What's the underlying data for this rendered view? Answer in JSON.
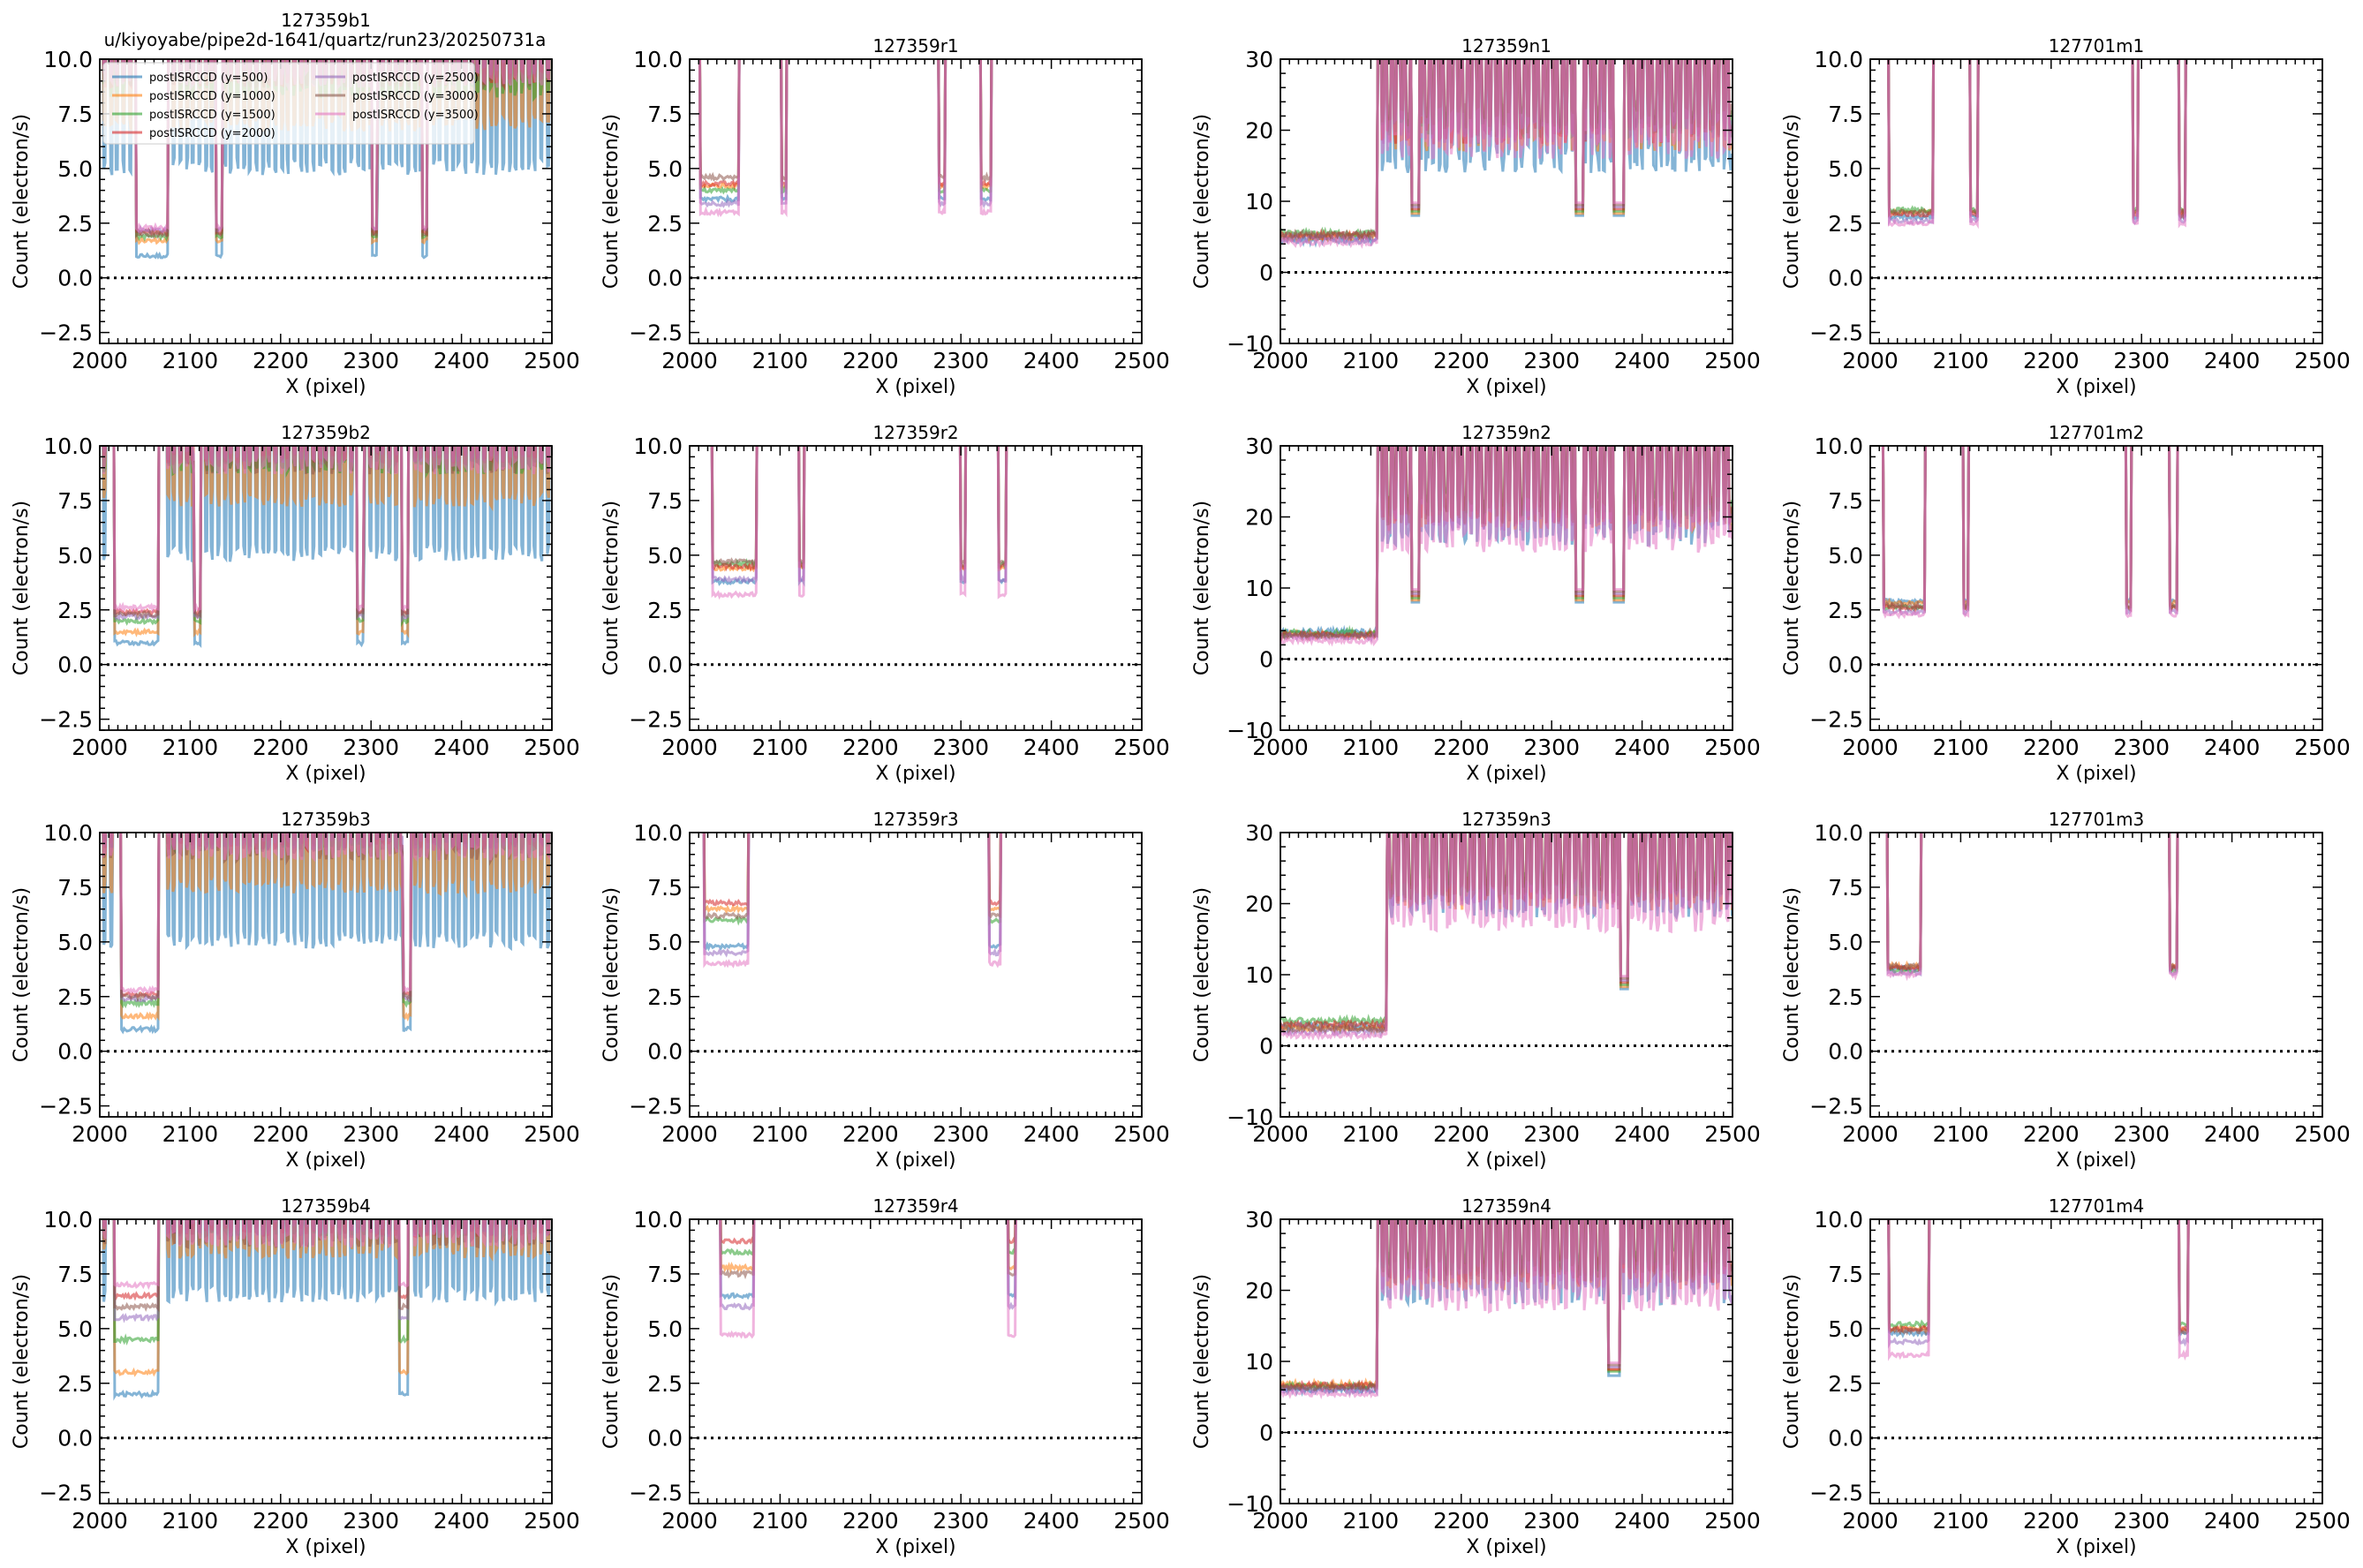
{
  "figure": {
    "suptitle": "u/kiyoyabe/pipe2d-1641/quartz/run23/20250731a",
    "xlabel": "X (pixel)",
    "ylabel": "Count (electron/s)"
  },
  "colors": {
    "postISRCCD (y=500)": "#1f77b4",
    "postISRCCD (y=1000)": "#ff7f0e",
    "postISRCCD (y=1500)": "#2ca02c",
    "postISRCCD (y=2000)": "#d62728",
    "postISRCCD (y=2500)": "#9467bd",
    "postISRCCD (y=3000)": "#8c564b",
    "postISRCCD (y=3500)": "#e377c2"
  },
  "legend": {
    "placement": "upper-left",
    "entries": [
      "postISRCCD (y=500)",
      "postISRCCD (y=1000)",
      "postISRCCD (y=1500)",
      "postISRCCD (y=2000)",
      "postISRCCD (y=2500)",
      "postISRCCD (y=3000)",
      "postISRCCD (y=3500)"
    ]
  },
  "chart_data": [
    {
      "title": "127359b1",
      "type": "line",
      "arm": "b",
      "xlim": [
        2000,
        2500
      ],
      "ylim": [
        -3,
        10
      ],
      "xticks": [
        "2000",
        "2100",
        "2200",
        "2300",
        "2400",
        "2500"
      ],
      "yticks": [
        "−2.5",
        "0.0",
        "2.5",
        "5.0",
        "7.5",
        "10.0"
      ],
      "hline": 0,
      "dips": [
        [
          2035,
          2080
        ],
        [
          2128,
          2136
        ],
        [
          2300,
          2307
        ],
        [
          2355,
          2363
        ]
      ],
      "flat_level": [
        1.0,
        1.7,
        1.9,
        2.1,
        2.2,
        2.0,
        2.3
      ],
      "high_level": [
        5.5,
        7.5,
        9,
        9.5,
        10,
        9.5,
        9.5
      ]
    },
    {
      "title": "127359r1",
      "type": "line",
      "arm": "r",
      "xlim": [
        2000,
        2500
      ],
      "ylim": [
        -3,
        10
      ],
      "xticks": [
        "2000",
        "2100",
        "2200",
        "2300",
        "2400",
        "2500"
      ],
      "yticks": [
        "−2.5",
        "0.0",
        "2.5",
        "5.0",
        "7.5",
        "10.0"
      ],
      "hline": 0,
      "dips": [
        [
          2007,
          2060
        ],
        [
          2100,
          2108
        ],
        [
          2275,
          2283
        ],
        [
          2320,
          2335
        ]
      ],
      "flat_level": [
        3.6,
        4.2,
        4.0,
        4.3,
        3.4,
        4.6,
        3.0
      ]
    },
    {
      "title": "127359n1",
      "type": "line",
      "arm": "n",
      "xlim": [
        2000,
        2500
      ],
      "ylim": [
        -10,
        30
      ],
      "xticks": [
        "2000",
        "2100",
        "2200",
        "2300",
        "2400",
        "2500"
      ],
      "yticks": [
        "−10",
        "0",
        "10",
        "20",
        "30"
      ],
      "hline": 0,
      "dips": [
        [
          2143,
          2155
        ],
        [
          2325,
          2337
        ],
        [
          2367,
          2382
        ]
      ],
      "flat_level": [
        4.5,
        5.0,
        5.5,
        5.2,
        4.8,
        5.3,
        4.2
      ],
      "high_level": [
        18,
        21,
        23,
        22,
        22,
        24,
        20
      ]
    },
    {
      "title": "127701m1",
      "type": "line",
      "arm": "m",
      "xlim": [
        2000,
        2500
      ],
      "ylim": [
        -3,
        10
      ],
      "xticks": [
        "2000",
        "2100",
        "2200",
        "2300",
        "2400",
        "2500"
      ],
      "yticks": [
        "−2.5",
        "0.0",
        "2.5",
        "5.0",
        "7.5",
        "10.0"
      ],
      "hline": 0,
      "dips": [
        [
          2015,
          2075
        ],
        [
          2110,
          2120
        ],
        [
          2290,
          2297
        ],
        [
          2340,
          2350
        ]
      ],
      "flat_level": [
        2.8,
        3.0,
        3.1,
        2.9,
        2.6,
        3.0,
        2.5
      ]
    },
    {
      "title": "127359b2",
      "type": "line",
      "arm": "b",
      "xlim": [
        2000,
        2500
      ],
      "ylim": [
        -3,
        10
      ],
      "xticks": [
        "2000",
        "2100",
        "2200",
        "2300",
        "2400",
        "2500"
      ],
      "yticks": [
        "−2.5",
        "0.0",
        "2.5",
        "5.0",
        "7.5",
        "10.0"
      ],
      "hline": 0,
      "dips": [
        [
          2010,
          2070
        ],
        [
          2104,
          2112
        ],
        [
          2284,
          2292
        ],
        [
          2333,
          2342
        ]
      ],
      "flat_level": [
        1.0,
        1.5,
        2.0,
        2.4,
        2.2,
        2.3,
        2.6
      ],
      "high_level": [
        5.5,
        8,
        9.5,
        10,
        10,
        9.5,
        9.5
      ]
    },
    {
      "title": "127359r2",
      "type": "line",
      "arm": "r",
      "xlim": [
        2000,
        2500
      ],
      "ylim": [
        -3,
        10
      ],
      "xticks": [
        "2000",
        "2100",
        "2200",
        "2300",
        "2400",
        "2500"
      ],
      "yticks": [
        "−2.5",
        "0.0",
        "2.5",
        "5.0",
        "7.5",
        "10.0"
      ],
      "hline": 0,
      "dips": [
        [
          2020,
          2080
        ],
        [
          2120,
          2128
        ],
        [
          2298,
          2306
        ],
        [
          2340,
          2352
        ]
      ],
      "flat_level": [
        3.8,
        4.4,
        4.6,
        4.5,
        3.9,
        4.7,
        3.2
      ]
    },
    {
      "title": "127359n2",
      "type": "line",
      "arm": "n",
      "xlim": [
        2000,
        2500
      ],
      "ylim": [
        -10,
        30
      ],
      "xticks": [
        "2000",
        "2100",
        "2200",
        "2300",
        "2400",
        "2500"
      ],
      "yticks": [
        "−10",
        "0",
        "10",
        "20",
        "30"
      ],
      "hline": 0,
      "dips": [
        [
          2143,
          2155
        ],
        [
          2325,
          2337
        ],
        [
          2367,
          2382
        ]
      ],
      "flat_level": [
        3.8,
        3.5,
        3.7,
        3.4,
        3.2,
        3.3,
        2.6
      ],
      "high_level": [
        20,
        22,
        24,
        23,
        22,
        23,
        19
      ]
    },
    {
      "title": "127701m2",
      "type": "line",
      "arm": "m",
      "xlim": [
        2000,
        2500
      ],
      "ylim": [
        -3,
        10
      ],
      "xticks": [
        "2000",
        "2100",
        "2200",
        "2300",
        "2400",
        "2500"
      ],
      "yticks": [
        "−2.5",
        "0.0",
        "2.5",
        "5.0",
        "7.5",
        "10.0"
      ],
      "hline": 0,
      "dips": [
        [
          2010,
          2065
        ],
        [
          2102,
          2110
        ],
        [
          2282,
          2290
        ],
        [
          2330,
          2340
        ]
      ],
      "flat_level": [
        2.9,
        2.8,
        2.6,
        2.6,
        2.4,
        2.7,
        2.3
      ]
    },
    {
      "title": "127359b3",
      "type": "line",
      "arm": "b",
      "xlim": [
        2000,
        2500
      ],
      "ylim": [
        -3,
        10
      ],
      "xticks": [
        "2000",
        "2100",
        "2200",
        "2300",
        "2400",
        "2500"
      ],
      "yticks": [
        "−2.5",
        "0.0",
        "2.5",
        "5.0",
        "7.5",
        "10.0"
      ],
      "hline": 0,
      "dips": [
        [
          2018,
          2070
        ],
        [
          2335,
          2345
        ]
      ],
      "flat_level": [
        1.0,
        1.6,
        2.2,
        2.6,
        2.4,
        2.5,
        2.8
      ],
      "high_level": [
        5.5,
        8,
        10,
        10,
        10,
        9.5,
        9.5
      ]
    },
    {
      "title": "127359r3",
      "type": "line",
      "arm": "r",
      "xlim": [
        2000,
        2500
      ],
      "ylim": [
        -3,
        10
      ],
      "xticks": [
        "2000",
        "2100",
        "2200",
        "2300",
        "2400",
        "2500"
      ],
      "yticks": [
        "−2.5",
        "0.0",
        "2.5",
        "5.0",
        "7.5",
        "10.0"
      ],
      "hline": 0,
      "dips": [
        [
          2010,
          2070
        ],
        [
          2330,
          2345
        ]
      ],
      "flat_level": [
        4.8,
        6.5,
        6.0,
        6.8,
        4.5,
        6.2,
        4.0
      ]
    },
    {
      "title": "127359n3",
      "type": "line",
      "arm": "n",
      "xlim": [
        2000,
        2500
      ],
      "ylim": [
        -10,
        30
      ],
      "xticks": [
        "2000",
        "2100",
        "2200",
        "2300",
        "2400",
        "2500"
      ],
      "yticks": [
        "−10",
        "0",
        "10",
        "20",
        "30"
      ],
      "hline": 0,
      "dips": [
        [
          2375,
          2385
        ]
      ],
      "flat_level": [
        2.8,
        2.5,
        3.5,
        3.0,
        2.0,
        2.4,
        1.5
      ],
      "high_level": [
        22,
        23,
        25,
        24,
        23,
        24,
        20
      ]
    },
    {
      "title": "127701m3",
      "type": "line",
      "arm": "m",
      "xlim": [
        2000,
        2500
      ],
      "ylim": [
        -3,
        10
      ],
      "xticks": [
        "2000",
        "2100",
        "2200",
        "2300",
        "2400",
        "2500"
      ],
      "yticks": [
        "−2.5",
        "0.0",
        "2.5",
        "5.0",
        "7.5",
        "10.0"
      ],
      "hline": 0,
      "dips": [
        [
          2015,
          2060
        ],
        [
          2330,
          2340
        ]
      ],
      "flat_level": [
        3.8,
        3.9,
        3.7,
        3.8,
        3.6,
        3.9,
        3.5
      ]
    },
    {
      "title": "127359b4",
      "type": "line",
      "arm": "b",
      "xlim": [
        2000,
        2500
      ],
      "ylim": [
        -3,
        10
      ],
      "xticks": [
        "2000",
        "2100",
        "2200",
        "2300",
        "2400",
        "2500"
      ],
      "yticks": [
        "−2.5",
        "0.0",
        "2.5",
        "5.0",
        "7.5",
        "10.0"
      ],
      "hline": 0,
      "dips": [
        [
          2010,
          2070
        ],
        [
          2330,
          2343
        ]
      ],
      "flat_level": [
        2.0,
        3.0,
        4.5,
        6.5,
        5.5,
        6.0,
        7.0
      ],
      "high_level": [
        7,
        9,
        10,
        10,
        10,
        9.5,
        9.5
      ]
    },
    {
      "title": "127359r4",
      "type": "line",
      "arm": "r",
      "xlim": [
        2000,
        2500
      ],
      "ylim": [
        -3,
        10
      ],
      "xticks": [
        "2000",
        "2100",
        "2200",
        "2300",
        "2400",
        "2500"
      ],
      "yticks": [
        "−2.5",
        "0.0",
        "2.5",
        "5.0",
        "7.5",
        "10.0"
      ],
      "hline": 0,
      "dips": [
        [
          2030,
          2075
        ],
        [
          2350,
          2362
        ]
      ],
      "flat_level": [
        6.5,
        7.8,
        8.5,
        9.0,
        6.0,
        7.5,
        4.7
      ]
    },
    {
      "title": "127359n4",
      "type": "line",
      "arm": "n",
      "xlim": [
        2000,
        2500
      ],
      "ylim": [
        -10,
        30
      ],
      "xticks": [
        "2000",
        "2100",
        "2200",
        "2300",
        "2400",
        "2500"
      ],
      "yticks": [
        "−10",
        "0",
        "10",
        "20",
        "30"
      ],
      "hline": 0,
      "dips": [
        [
          2360,
          2378
        ]
      ],
      "flat_level": [
        6.0,
        6.8,
        6.5,
        6.6,
        6.0,
        6.4,
        5.5
      ],
      "high_level": [
        22,
        24,
        26,
        25,
        24,
        25,
        21
      ]
    },
    {
      "title": "127701m4",
      "type": "line",
      "arm": "m",
      "xlim": [
        2000,
        2500
      ],
      "ylim": [
        -3,
        10
      ],
      "xticks": [
        "2000",
        "2100",
        "2200",
        "2300",
        "2400",
        "2500"
      ],
      "yticks": [
        "−2.5",
        "0.0",
        "2.5",
        "5.0",
        "7.5",
        "10.0"
      ],
      "hline": 0,
      "dips": [
        [
          2015,
          2070
        ],
        [
          2340,
          2353
        ]
      ],
      "flat_level": [
        4.8,
        5.0,
        5.2,
        5.0,
        4.4,
        4.9,
        3.8
      ]
    }
  ]
}
